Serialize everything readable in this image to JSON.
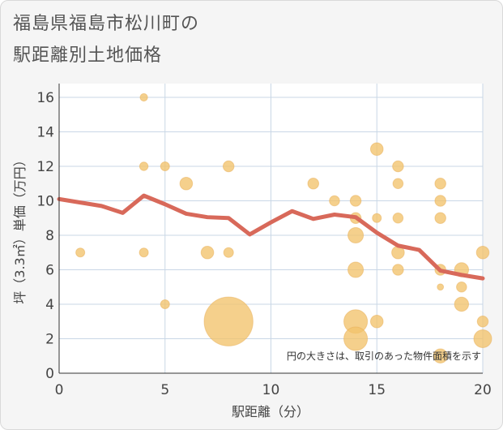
{
  "header": {
    "title_line1": "福島県福島市松川町の",
    "title_line2": "駅距離別土地価格"
  },
  "chart_data": {
    "type": "scatter",
    "title": "福島県福島市松川町の駅距離別土地価格",
    "xlabel": "駅距離（分）",
    "ylabel": "坪（3.3㎡）単価（万円）",
    "xlim": [
      0,
      20
    ],
    "ylim": [
      0,
      16.8
    ],
    "xticks": [
      0,
      5,
      10,
      15,
      20
    ],
    "yticks": [
      0,
      2,
      4,
      6,
      8,
      10,
      12,
      14,
      16
    ],
    "grid": true,
    "note": "円の大きさは、取引のあった物件面積を示す",
    "colors": {
      "bubble": "#f2c36b",
      "line": "#d8695a",
      "grid": "#c9d7e6"
    },
    "points": [
      {
        "x": 1,
        "y": 7,
        "size": 1
      },
      {
        "x": 4,
        "y": 16,
        "size": 0.7
      },
      {
        "x": 4,
        "y": 12,
        "size": 0.9
      },
      {
        "x": 4,
        "y": 7,
        "size": 1
      },
      {
        "x": 5,
        "y": 12,
        "size": 1
      },
      {
        "x": 5,
        "y": 4,
        "size": 1
      },
      {
        "x": 6,
        "y": 11,
        "size": 2
      },
      {
        "x": 7,
        "y": 7,
        "size": 2
      },
      {
        "x": 8,
        "y": 12,
        "size": 1.5
      },
      {
        "x": 8,
        "y": 7,
        "size": 1.2
      },
      {
        "x": 8,
        "y": 3,
        "size": 30
      },
      {
        "x": 12,
        "y": 11,
        "size": 1.5
      },
      {
        "x": 13,
        "y": 10,
        "size": 1.3
      },
      {
        "x": 14,
        "y": 10,
        "size": 1.5
      },
      {
        "x": 14,
        "y": 9,
        "size": 1.5
      },
      {
        "x": 14,
        "y": 8,
        "size": 3
      },
      {
        "x": 14,
        "y": 6,
        "size": 3
      },
      {
        "x": 14,
        "y": 3,
        "size": 7
      },
      {
        "x": 14,
        "y": 2,
        "size": 7
      },
      {
        "x": 15,
        "y": 13,
        "size": 2
      },
      {
        "x": 15,
        "y": 9,
        "size": 1
      },
      {
        "x": 15,
        "y": 3,
        "size": 2
      },
      {
        "x": 16,
        "y": 12,
        "size": 1.5
      },
      {
        "x": 16,
        "y": 11,
        "size": 1.3
      },
      {
        "x": 16,
        "y": 9,
        "size": 1.3
      },
      {
        "x": 16,
        "y": 7,
        "size": 2
      },
      {
        "x": 16,
        "y": 6,
        "size": 1.5
      },
      {
        "x": 18,
        "y": 11,
        "size": 1.5
      },
      {
        "x": 18,
        "y": 10,
        "size": 1.5
      },
      {
        "x": 18,
        "y": 9,
        "size": 1.5
      },
      {
        "x": 18,
        "y": 6,
        "size": 1.5
      },
      {
        "x": 18,
        "y": 5,
        "size": 0.5
      },
      {
        "x": 18,
        "y": 1,
        "size": 2.5
      },
      {
        "x": 19,
        "y": 6,
        "size": 2.5
      },
      {
        "x": 19,
        "y": 5,
        "size": 1.3
      },
      {
        "x": 19,
        "y": 4,
        "size": 2.5
      },
      {
        "x": 20,
        "y": 7,
        "size": 2
      },
      {
        "x": 20,
        "y": 3,
        "size": 1.5
      },
      {
        "x": 20,
        "y": 2,
        "size": 4
      }
    ],
    "trend": {
      "x": [
        0,
        1,
        2,
        3,
        4,
        5,
        6,
        7,
        8,
        9,
        10,
        11,
        12,
        13,
        14,
        15,
        16,
        17,
        18,
        19,
        20
      ],
      "y": [
        10.1,
        9.9,
        9.7,
        9.3,
        10.3,
        9.8,
        9.25,
        9.05,
        9.0,
        8.05,
        8.75,
        9.4,
        8.95,
        9.2,
        9.05,
        8.15,
        7.4,
        7.15,
        5.95,
        5.7,
        5.5
      ]
    }
  }
}
